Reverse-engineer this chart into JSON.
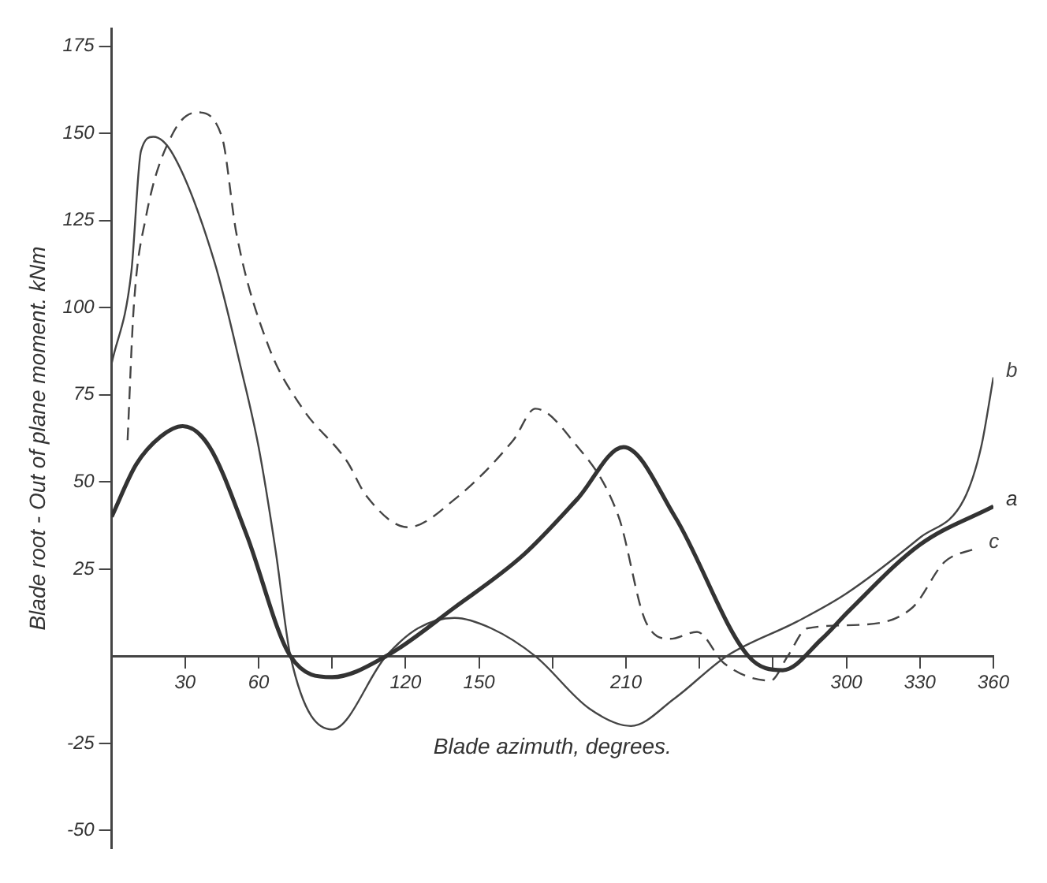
{
  "chart_data": {
    "type": "line",
    "xlabel": "Blade azimuth, degrees.",
    "ylabel": "Blade root - Out of plane moment. kNm",
    "xlim": [
      0,
      360
    ],
    "ylim": [
      -55,
      180
    ],
    "xticks": [
      30,
      60,
      {
        "value": 90,
        "label": null
      },
      120,
      150,
      {
        "value": 180,
        "label": null
      },
      210,
      {
        "value": 240,
        "label": null
      },
      {
        "value": 270,
        "label": null
      },
      300,
      330,
      360
    ],
    "yticks": [
      -50,
      -25,
      25,
      50,
      75,
      100,
      125,
      150,
      175
    ],
    "grid": false,
    "legend": false,
    "marker": "none",
    "series": [
      {
        "name": "a",
        "color": "#333333",
        "line_style": "solid",
        "x": [
          0,
          10,
          20,
          29,
          40,
          55,
          73,
          90,
          112,
          140,
          168,
          190,
          209,
          230,
          260,
          274,
          290,
          301,
          330,
          360
        ],
        "values": [
          40,
          55,
          63,
          66,
          60,
          35,
          0,
          -6,
          0,
          14,
          29,
          45,
          60,
          40,
          0,
          -4,
          5,
          13,
          32,
          43
        ]
      },
      {
        "name": "b",
        "color": "#444444",
        "line_style": "solid",
        "x": [
          0,
          8,
          12,
          17,
          25,
          42,
          53,
          60,
          67,
          73,
          90,
          112,
          125,
          140,
          155,
          173,
          195,
          212,
          230,
          251,
          280,
          300,
          330,
          348,
          355,
          360
        ],
        "values": [
          84,
          110,
          145,
          149,
          144,
          113,
          82,
          60,
          30,
          0,
          -21,
          0,
          8,
          11,
          8,
          0,
          -15,
          -20,
          -12,
          0,
          10,
          18,
          34,
          45,
          60,
          80
        ]
      },
      {
        "name": "c",
        "color": "#444444",
        "line_style": "dashed",
        "x": [
          6.5,
          9,
          14,
          25,
          35,
          45,
          51,
          64,
          78,
          96,
          104,
          121,
          140,
          164,
          173,
          188,
          207,
          218,
          228,
          239,
          250,
          269,
          276,
          284,
          305,
          327,
          340,
          353
        ],
        "values": [
          62,
          100,
          126,
          150,
          156,
          149,
          121,
          89,
          71,
          56,
          46,
          37,
          45,
          62,
          71,
          62,
          40,
          10,
          5,
          7,
          -2,
          -7,
          0,
          8,
          9,
          14,
          27,
          31
        ]
      }
    ]
  }
}
